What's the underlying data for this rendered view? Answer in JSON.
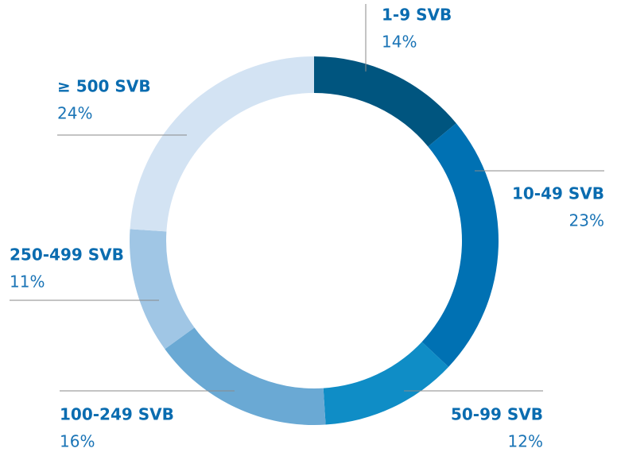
{
  "chart_data": {
    "type": "donut",
    "categories": [
      "1-9 SVB",
      "10-49 SVB",
      "50-99 SVB",
      "100-249 SVB",
      "250-499 SVB",
      "≥ 500 SVB"
    ],
    "values": [
      14,
      23,
      12,
      16,
      11,
      24
    ],
    "value_labels": [
      "14%",
      "23%",
      "12%",
      "16%",
      "11%",
      "24%"
    ],
    "colors": [
      "#00557f",
      "#0071b3",
      "#0f8dc6",
      "#6aa9d4",
      "#a0c6e5",
      "#d3e3f3"
    ]
  }
}
